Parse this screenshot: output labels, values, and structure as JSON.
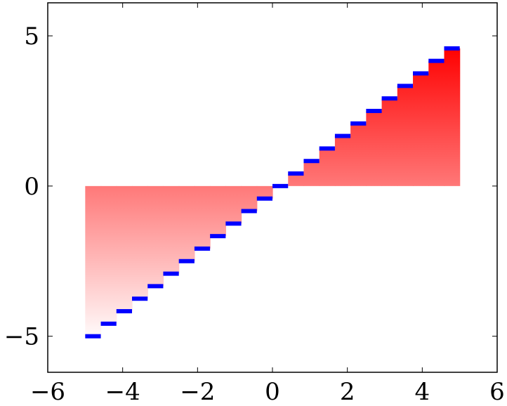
{
  "chart_data": {
    "type": "bar",
    "title": "",
    "xlabel": "",
    "ylabel": "",
    "xlim": [
      -6,
      6
    ],
    "ylim": [
      -6.2,
      6.1
    ],
    "grid": false,
    "x_ticks": [
      -6,
      -4,
      -2,
      0,
      2,
      4,
      6
    ],
    "x_tick_labels": [
      "−6",
      "−4",
      "−2",
      "0",
      "2",
      "4",
      "6"
    ],
    "y_ticks": [
      -5,
      0,
      5
    ],
    "y_tick_labels": [
      "−5",
      "0",
      "5"
    ],
    "series": [
      {
        "style": "ycomb step bars with gradient fill to y=0",
        "bar_color": "#0000ff",
        "fill_top_color": "#ff0000",
        "fill_bottom_color": "#ffffff",
        "x_start": -5,
        "x_end": 5,
        "step_width": 0.4167,
        "values": [
          -5.0,
          -4.583,
          -4.167,
          -3.75,
          -3.333,
          -2.917,
          -2.5,
          -2.083,
          -1.667,
          -1.25,
          -0.833,
          -0.417,
          0.0,
          0.417,
          0.833,
          1.25,
          1.667,
          2.083,
          2.5,
          2.917,
          3.333,
          3.75,
          4.167,
          4.583
        ]
      }
    ]
  }
}
